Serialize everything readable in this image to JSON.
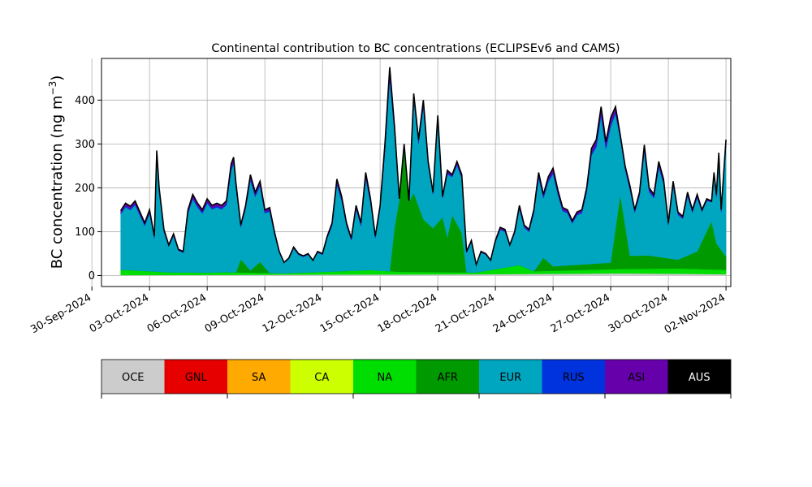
{
  "chart_data": {
    "type": "area",
    "title": "Continental contribution to BC concentrations (ECLIPSEv6 and CAMS)",
    "ylabel": "BC concentration (ng m",
    "ylabel_sup": "−3",
    "ylabel_close": ")",
    "xlabel": "",
    "xlim": [
      "2024-09-30T12:00",
      "2024-11-02T06:00"
    ],
    "ylim": [
      -25,
      495
    ],
    "grid": true,
    "x_ticks": [
      "30-Sep-2024",
      "03-Oct-2024",
      "06-Oct-2024",
      "09-Oct-2024",
      "12-Oct-2024",
      "15-Oct-2024",
      "18-Oct-2024",
      "21-Oct-2024",
      "24-Oct-2024",
      "27-Oct-2024",
      "30-Oct-2024",
      "02-Nov-2024"
    ],
    "y_ticks": [
      0,
      100,
      200,
      300,
      400
    ],
    "stack_order": [
      "OCE",
      "NA",
      "AFR",
      "EUR",
      "RUS",
      "ASI",
      "AUS"
    ],
    "total": [
      [
        "2024-10-01T12:00",
        148
      ],
      [
        "2024-10-01T18:00",
        165
      ],
      [
        "2024-10-02T00:00",
        158
      ],
      [
        "2024-10-02T06:00",
        170
      ],
      [
        "2024-10-02T12:00",
        145
      ],
      [
        "2024-10-02T18:00",
        120
      ],
      [
        "2024-10-03T00:00",
        150
      ],
      [
        "2024-10-03T06:00",
        90
      ],
      [
        "2024-10-03T09:00",
        285
      ],
      [
        "2024-10-03T12:00",
        200
      ],
      [
        "2024-10-03T18:00",
        105
      ],
      [
        "2024-10-04T00:00",
        70
      ],
      [
        "2024-10-04T06:00",
        95
      ],
      [
        "2024-10-04T12:00",
        60
      ],
      [
        "2024-10-04T18:00",
        55
      ],
      [
        "2024-10-05T00:00",
        150
      ],
      [
        "2024-10-05T06:00",
        185
      ],
      [
        "2024-10-05T12:00",
        165
      ],
      [
        "2024-10-05T18:00",
        150
      ],
      [
        "2024-10-06T00:00",
        175
      ],
      [
        "2024-10-06T06:00",
        160
      ],
      [
        "2024-10-06T12:00",
        165
      ],
      [
        "2024-10-06T18:00",
        160
      ],
      [
        "2024-10-07T00:00",
        170
      ],
      [
        "2024-10-07T06:00",
        255
      ],
      [
        "2024-10-07T09:00",
        270
      ],
      [
        "2024-10-07T12:00",
        210
      ],
      [
        "2024-10-07T18:00",
        115
      ],
      [
        "2024-10-08T00:00",
        160
      ],
      [
        "2024-10-08T06:00",
        230
      ],
      [
        "2024-10-08T12:00",
        190
      ],
      [
        "2024-10-08T18:00",
        215
      ],
      [
        "2024-10-09T00:00",
        150
      ],
      [
        "2024-10-09T06:00",
        155
      ],
      [
        "2024-10-09T12:00",
        100
      ],
      [
        "2024-10-09T18:00",
        55
      ],
      [
        "2024-10-10T00:00",
        30
      ],
      [
        "2024-10-10T06:00",
        40
      ],
      [
        "2024-10-10T12:00",
        65
      ],
      [
        "2024-10-10T18:00",
        50
      ],
      [
        "2024-10-11T00:00",
        45
      ],
      [
        "2024-10-11T06:00",
        50
      ],
      [
        "2024-10-11T12:00",
        35
      ],
      [
        "2024-10-11T18:00",
        55
      ],
      [
        "2024-10-12T00:00",
        50
      ],
      [
        "2024-10-12T06:00",
        90
      ],
      [
        "2024-10-12T12:00",
        120
      ],
      [
        "2024-10-12T18:00",
        220
      ],
      [
        "2024-10-13T00:00",
        180
      ],
      [
        "2024-10-13T06:00",
        120
      ],
      [
        "2024-10-13T12:00",
        85
      ],
      [
        "2024-10-13T18:00",
        160
      ],
      [
        "2024-10-14T00:00",
        120
      ],
      [
        "2024-10-14T06:00",
        235
      ],
      [
        "2024-10-14T12:00",
        175
      ],
      [
        "2024-10-14T18:00",
        90
      ],
      [
        "2024-10-15T00:00",
        160
      ],
      [
        "2024-10-15T06:00",
        300
      ],
      [
        "2024-10-15T12:00",
        475
      ],
      [
        "2024-10-15T18:00",
        340
      ],
      [
        "2024-10-16T00:00",
        175
      ],
      [
        "2024-10-16T06:00",
        300
      ],
      [
        "2024-10-16T12:00",
        170
      ],
      [
        "2024-10-16T18:00",
        415
      ],
      [
        "2024-10-17T00:00",
        310
      ],
      [
        "2024-10-17T06:00",
        400
      ],
      [
        "2024-10-17T12:00",
        260
      ],
      [
        "2024-10-17T18:00",
        190
      ],
      [
        "2024-10-18T00:00",
        365
      ],
      [
        "2024-10-18T06:00",
        180
      ],
      [
        "2024-10-18T12:00",
        240
      ],
      [
        "2024-10-18T18:00",
        230
      ],
      [
        "2024-10-19T00:00",
        260
      ],
      [
        "2024-10-19T06:00",
        230
      ],
      [
        "2024-10-19T12:00",
        55
      ],
      [
        "2024-10-19T18:00",
        80
      ],
      [
        "2024-10-20T00:00",
        25
      ],
      [
        "2024-10-20T06:00",
        55
      ],
      [
        "2024-10-20T12:00",
        50
      ],
      [
        "2024-10-20T18:00",
        35
      ],
      [
        "2024-10-21T00:00",
        80
      ],
      [
        "2024-10-21T06:00",
        110
      ],
      [
        "2024-10-21T12:00",
        105
      ],
      [
        "2024-10-21T18:00",
        70
      ],
      [
        "2024-10-22T00:00",
        100
      ],
      [
        "2024-10-22T06:00",
        160
      ],
      [
        "2024-10-22T12:00",
        115
      ],
      [
        "2024-10-22T18:00",
        105
      ],
      [
        "2024-10-23T00:00",
        150
      ],
      [
        "2024-10-23T06:00",
        235
      ],
      [
        "2024-10-23T12:00",
        185
      ],
      [
        "2024-10-23T18:00",
        225
      ],
      [
        "2024-10-24T00:00",
        245
      ],
      [
        "2024-10-24T06:00",
        195
      ],
      [
        "2024-10-24T12:00",
        155
      ],
      [
        "2024-10-24T18:00",
        150
      ],
      [
        "2024-10-25T00:00",
        125
      ],
      [
        "2024-10-25T06:00",
        145
      ],
      [
        "2024-10-25T12:00",
        150
      ],
      [
        "2024-10-25T18:00",
        200
      ],
      [
        "2024-10-26T00:00",
        290
      ],
      [
        "2024-10-26T06:00",
        310
      ],
      [
        "2024-10-26T12:00",
        385
      ],
      [
        "2024-10-26T18:00",
        305
      ],
      [
        "2024-10-27T00:00",
        360
      ],
      [
        "2024-10-27T06:00",
        385
      ],
      [
        "2024-10-27T12:00",
        320
      ],
      [
        "2024-10-27T18:00",
        250
      ],
      [
        "2024-10-28T00:00",
        205
      ],
      [
        "2024-10-28T06:00",
        150
      ],
      [
        "2024-10-28T12:00",
        190
      ],
      [
        "2024-10-28T18:00",
        298
      ],
      [
        "2024-10-29T00:00",
        200
      ],
      [
        "2024-10-29T06:00",
        185
      ],
      [
        "2024-10-29T12:00",
        260
      ],
      [
        "2024-10-29T18:00",
        220
      ],
      [
        "2024-10-30T00:00",
        120
      ],
      [
        "2024-10-30T06:00",
        215
      ],
      [
        "2024-10-30T12:00",
        145
      ],
      [
        "2024-10-30T18:00",
        135
      ],
      [
        "2024-10-31T00:00",
        190
      ],
      [
        "2024-10-31T06:00",
        150
      ],
      [
        "2024-10-31T12:00",
        185
      ],
      [
        "2024-10-31T18:00",
        150
      ],
      [
        "2024-11-01T00:00",
        175
      ],
      [
        "2024-11-01T06:00",
        170
      ],
      [
        "2024-11-01T09:00",
        235
      ],
      [
        "2024-11-01T12:00",
        185
      ],
      [
        "2024-11-01T15:00",
        280
      ],
      [
        "2024-11-01T18:00",
        150
      ],
      [
        "2024-11-01T21:00",
        230
      ],
      [
        "2024-11-02T00:00",
        310
      ]
    ],
    "series": [
      {
        "name": "OCE",
        "points": [
          [
            "2024-10-01T12:00",
            1
          ],
          [
            "2024-10-10T00:00",
            2
          ],
          [
            "2024-10-20T00:00",
            3
          ],
          [
            "2024-10-27T12:00",
            5
          ],
          [
            "2024-10-31T00:00",
            4
          ],
          [
            "2024-11-02T00:00",
            3
          ]
        ]
      },
      {
        "name": "NA",
        "points": [
          [
            "2024-10-01T12:00",
            12
          ],
          [
            "2024-10-02T12:00",
            10
          ],
          [
            "2024-10-04T00:00",
            6
          ],
          [
            "2024-10-06T00:00",
            5
          ],
          [
            "2024-10-07T00:00",
            6
          ],
          [
            "2024-10-10T00:00",
            3
          ],
          [
            "2024-10-14T12:00",
            10
          ],
          [
            "2024-10-16T00:00",
            6
          ],
          [
            "2024-10-20T00:00",
            4
          ],
          [
            "2024-10-22T06:00",
            20
          ],
          [
            "2024-10-23T00:00",
            6
          ],
          [
            "2024-10-27T12:00",
            10
          ],
          [
            "2024-10-30T12:00",
            12
          ],
          [
            "2024-11-02T00:00",
            10
          ]
        ]
      },
      {
        "name": "AFR",
        "points": [
          [
            "2024-10-01T12:00",
            0
          ],
          [
            "2024-10-07T12:00",
            0
          ],
          [
            "2024-10-07T18:00",
            30
          ],
          [
            "2024-10-08T06:00",
            5
          ],
          [
            "2024-10-08T18:00",
            25
          ],
          [
            "2024-10-09T06:00",
            0
          ],
          [
            "2024-10-15T12:00",
            0
          ],
          [
            "2024-10-16T00:00",
            200
          ],
          [
            "2024-10-16T06:00",
            280
          ],
          [
            "2024-10-16T18:00",
            180
          ],
          [
            "2024-10-17T06:00",
            120
          ],
          [
            "2024-10-17T18:00",
            100
          ],
          [
            "2024-10-18T06:00",
            125
          ],
          [
            "2024-10-18T12:00",
            80
          ],
          [
            "2024-10-18T18:00",
            130
          ],
          [
            "2024-10-19T06:00",
            90
          ],
          [
            "2024-10-19T12:00",
            0
          ],
          [
            "2024-10-23T00:00",
            0
          ],
          [
            "2024-10-23T12:00",
            30
          ],
          [
            "2024-10-24T00:00",
            10
          ],
          [
            "2024-10-27T00:00",
            15
          ],
          [
            "2024-10-27T12:00",
            170
          ],
          [
            "2024-10-28T00:00",
            30
          ],
          [
            "2024-10-29T00:00",
            30
          ],
          [
            "2024-10-30T12:00",
            20
          ],
          [
            "2024-10-31T12:00",
            40
          ],
          [
            "2024-11-01T06:00",
            110
          ],
          [
            "2024-11-01T12:00",
            60
          ],
          [
            "2024-11-02T00:00",
            30
          ]
        ]
      },
      {
        "name": "EUR",
        "share": 0.94
      },
      {
        "name": "RUS",
        "share": 0.02
      },
      {
        "name": "ASI",
        "share": 0.04
      },
      {
        "name": "AUS",
        "role": "outline"
      }
    ],
    "legend": {
      "placement": "bottom",
      "entries": [
        {
          "name": "OCE",
          "color": "#cccccc"
        },
        {
          "name": "GNL",
          "color": "#e60000"
        },
        {
          "name": "SA",
          "color": "#ffaa00"
        },
        {
          "name": "CA",
          "color": "#ccff00"
        },
        {
          "name": "NA",
          "color": "#00dd00"
        },
        {
          "name": "AFR",
          "color": "#009900"
        },
        {
          "name": "EUR",
          "color": "#00a5bf"
        },
        {
          "name": "RUS",
          "color": "#0033dd"
        },
        {
          "name": "ASI",
          "color": "#6600aa"
        },
        {
          "name": "AUS",
          "color": "#000000"
        }
      ]
    }
  }
}
